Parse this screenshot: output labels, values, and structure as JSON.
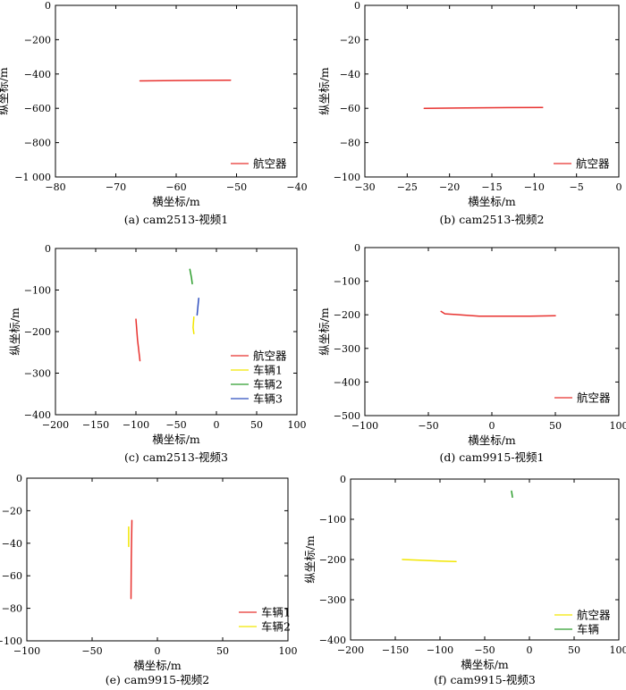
{
  "chart_data": [
    {
      "type": "line",
      "caption": "(a) cam2513-视频1",
      "xlabel": "横坐标/m",
      "ylabel": "纵坐标/m",
      "xlim": [
        -80,
        -40
      ],
      "ylim": [
        -1000,
        0
      ],
      "xticks": [
        -80,
        -70,
        -60,
        -50,
        -40
      ],
      "xtick_labels": [
        "−80",
        "−70",
        "−60",
        "−50",
        "−40"
      ],
      "yticks": [
        0,
        -200,
        -400,
        -600,
        -800,
        -1000
      ],
      "ytick_labels": [
        "0",
        "−200",
        "−400",
        "−600",
        "−800",
        "−1 000"
      ],
      "legend_position": "bottom-right",
      "series": [
        {
          "name": "航空器",
          "color": "#e8322f",
          "points": [
            [
              -66,
              -440
            ],
            [
              -60,
              -438
            ],
            [
              -55,
              -437
            ],
            [
              -51,
              -436
            ]
          ]
        }
      ]
    },
    {
      "type": "line",
      "caption": "(b) cam2513-视频2",
      "xlabel": "横坐标/m",
      "ylabel": "纵坐标/m",
      "xlim": [
        -30,
        0
      ],
      "ylim": [
        -100,
        0
      ],
      "xticks": [
        -30,
        -25,
        -20,
        -15,
        -10,
        -5,
        0
      ],
      "xtick_labels": [
        "−30",
        "−25",
        "−20",
        "−15",
        "−10",
        "−5",
        "0"
      ],
      "yticks": [
        0,
        -20,
        -40,
        -60,
        -80,
        -100
      ],
      "ytick_labels": [
        "0",
        "−20",
        "−40",
        "−60",
        "−80",
        "−100"
      ],
      "legend_position": "bottom-right",
      "series": [
        {
          "name": "航空器",
          "color": "#e8322f",
          "points": [
            [
              -23,
              -60
            ],
            [
              -18,
              -59.8
            ],
            [
              -13,
              -59.6
            ],
            [
              -9,
              -59.5
            ]
          ]
        }
      ]
    },
    {
      "type": "line",
      "caption": "(c) cam2513-视频3",
      "xlabel": "横坐标/m",
      "ylabel": "纵坐标/m",
      "xlim": [
        -200,
        100
      ],
      "ylim": [
        -400,
        0
      ],
      "xticks": [
        -200,
        -150,
        -100,
        -50,
        0,
        50,
        100
      ],
      "xtick_labels": [
        "−200",
        "−150",
        "−100",
        "−50",
        "0",
        "50",
        "100"
      ],
      "yticks": [
        0,
        -100,
        -200,
        -300,
        -400
      ],
      "ytick_labels": [
        "0",
        "−100",
        "−200",
        "−300",
        "−400"
      ],
      "legend_position": "bottom-right",
      "series": [
        {
          "name": "航空器",
          "color": "#e8322f",
          "points": [
            [
              -100,
              -170
            ],
            [
              -98,
              -220
            ],
            [
              -95,
              -270
            ]
          ]
        },
        {
          "name": "车辆1",
          "color": "#f2e600",
          "points": [
            [
              -28,
              -165
            ],
            [
              -29,
              -190
            ],
            [
              -28,
              -205
            ]
          ]
        },
        {
          "name": "车辆2",
          "color": "#2e9e2e",
          "points": [
            [
              -33,
              -50
            ],
            [
              -31,
              -70
            ],
            [
              -30,
              -85
            ]
          ]
        },
        {
          "name": "车辆3",
          "color": "#2f4fbf",
          "points": [
            [
              -22,
              -120
            ],
            [
              -23,
              -140
            ],
            [
              -24,
              -160
            ]
          ]
        }
      ]
    },
    {
      "type": "line",
      "caption": "(d) cam9915-视频1",
      "xlabel": "横坐标/m",
      "ylabel": "纵坐标/m",
      "xlim": [
        -100,
        100
      ],
      "ylim": [
        -500,
        0
      ],
      "xticks": [
        -100,
        -50,
        0,
        50,
        100
      ],
      "xtick_labels": [
        "−100",
        "−50",
        "0",
        "50",
        "100"
      ],
      "yticks": [
        0,
        -100,
        -200,
        -300,
        -400,
        -500
      ],
      "ytick_labels": [
        "0",
        "−100",
        "−200",
        "−300",
        "−400",
        "−500"
      ],
      "legend_position": "bottom-right",
      "series": [
        {
          "name": "航空器",
          "color": "#e8322f",
          "points": [
            [
              -40,
              -190
            ],
            [
              -37,
              -197
            ],
            [
              -25,
              -200
            ],
            [
              -10,
              -204
            ],
            [
              10,
              -204
            ],
            [
              30,
              -204
            ],
            [
              50,
              -203
            ]
          ]
        }
      ]
    },
    {
      "type": "line",
      "caption": "(e) cam9915-视频2",
      "xlabel": "横坐标/m",
      "ylabel": "纵坐标/m",
      "xlim": [
        -100,
        100
      ],
      "ylim": [
        -100,
        0
      ],
      "xticks": [
        -100,
        -50,
        0,
        50,
        100
      ],
      "xtick_labels": [
        "−100",
        "−50",
        "0",
        "50",
        "100"
      ],
      "yticks": [
        0,
        -20,
        -40,
        -60,
        -80,
        -100
      ],
      "ytick_labels": [
        "0",
        "−20",
        "−40",
        "−60",
        "−80",
        "−100"
      ],
      "legend_position": "bottom-right",
      "series": [
        {
          "name": "车辆1",
          "color": "#e8322f",
          "points": [
            [
              -19.5,
              -26
            ],
            [
              -20,
              -50
            ],
            [
              -20.2,
              -74
            ]
          ]
        },
        {
          "name": "车辆2",
          "color": "#f2e600",
          "points": [
            [
              -22,
              -30
            ],
            [
              -22,
              -36
            ],
            [
              -22,
              -42
            ]
          ]
        }
      ]
    },
    {
      "type": "line",
      "caption": "(f) cam9915-视频3",
      "xlabel": "横坐标/m",
      "ylabel": "纵坐标/m",
      "xlim": [
        -200,
        100
      ],
      "ylim": [
        -400,
        0
      ],
      "xticks": [
        -200,
        -150,
        -100,
        -50,
        0,
        50,
        100
      ],
      "xtick_labels": [
        "−200",
        "−150",
        "−100",
        "−50",
        "0",
        "50",
        "100"
      ],
      "yticks": [
        0,
        -100,
        -200,
        -300,
        -400
      ],
      "ytick_labels": [
        "0",
        "−100",
        "−200",
        "−300",
        "−400"
      ],
      "legend_position": "bottom-right",
      "series": [
        {
          "name": "航空器",
          "color": "#f2e600",
          "points": [
            [
              -142,
              -200
            ],
            [
              -120,
              -202
            ],
            [
              -100,
              -204
            ],
            [
              -82,
              -205
            ]
          ]
        },
        {
          "name": "车辆",
          "color": "#2e9e2e",
          "points": [
            [
              -20,
              -30
            ],
            [
              -19.5,
              -37
            ],
            [
              -19,
              -45
            ]
          ]
        }
      ]
    }
  ]
}
